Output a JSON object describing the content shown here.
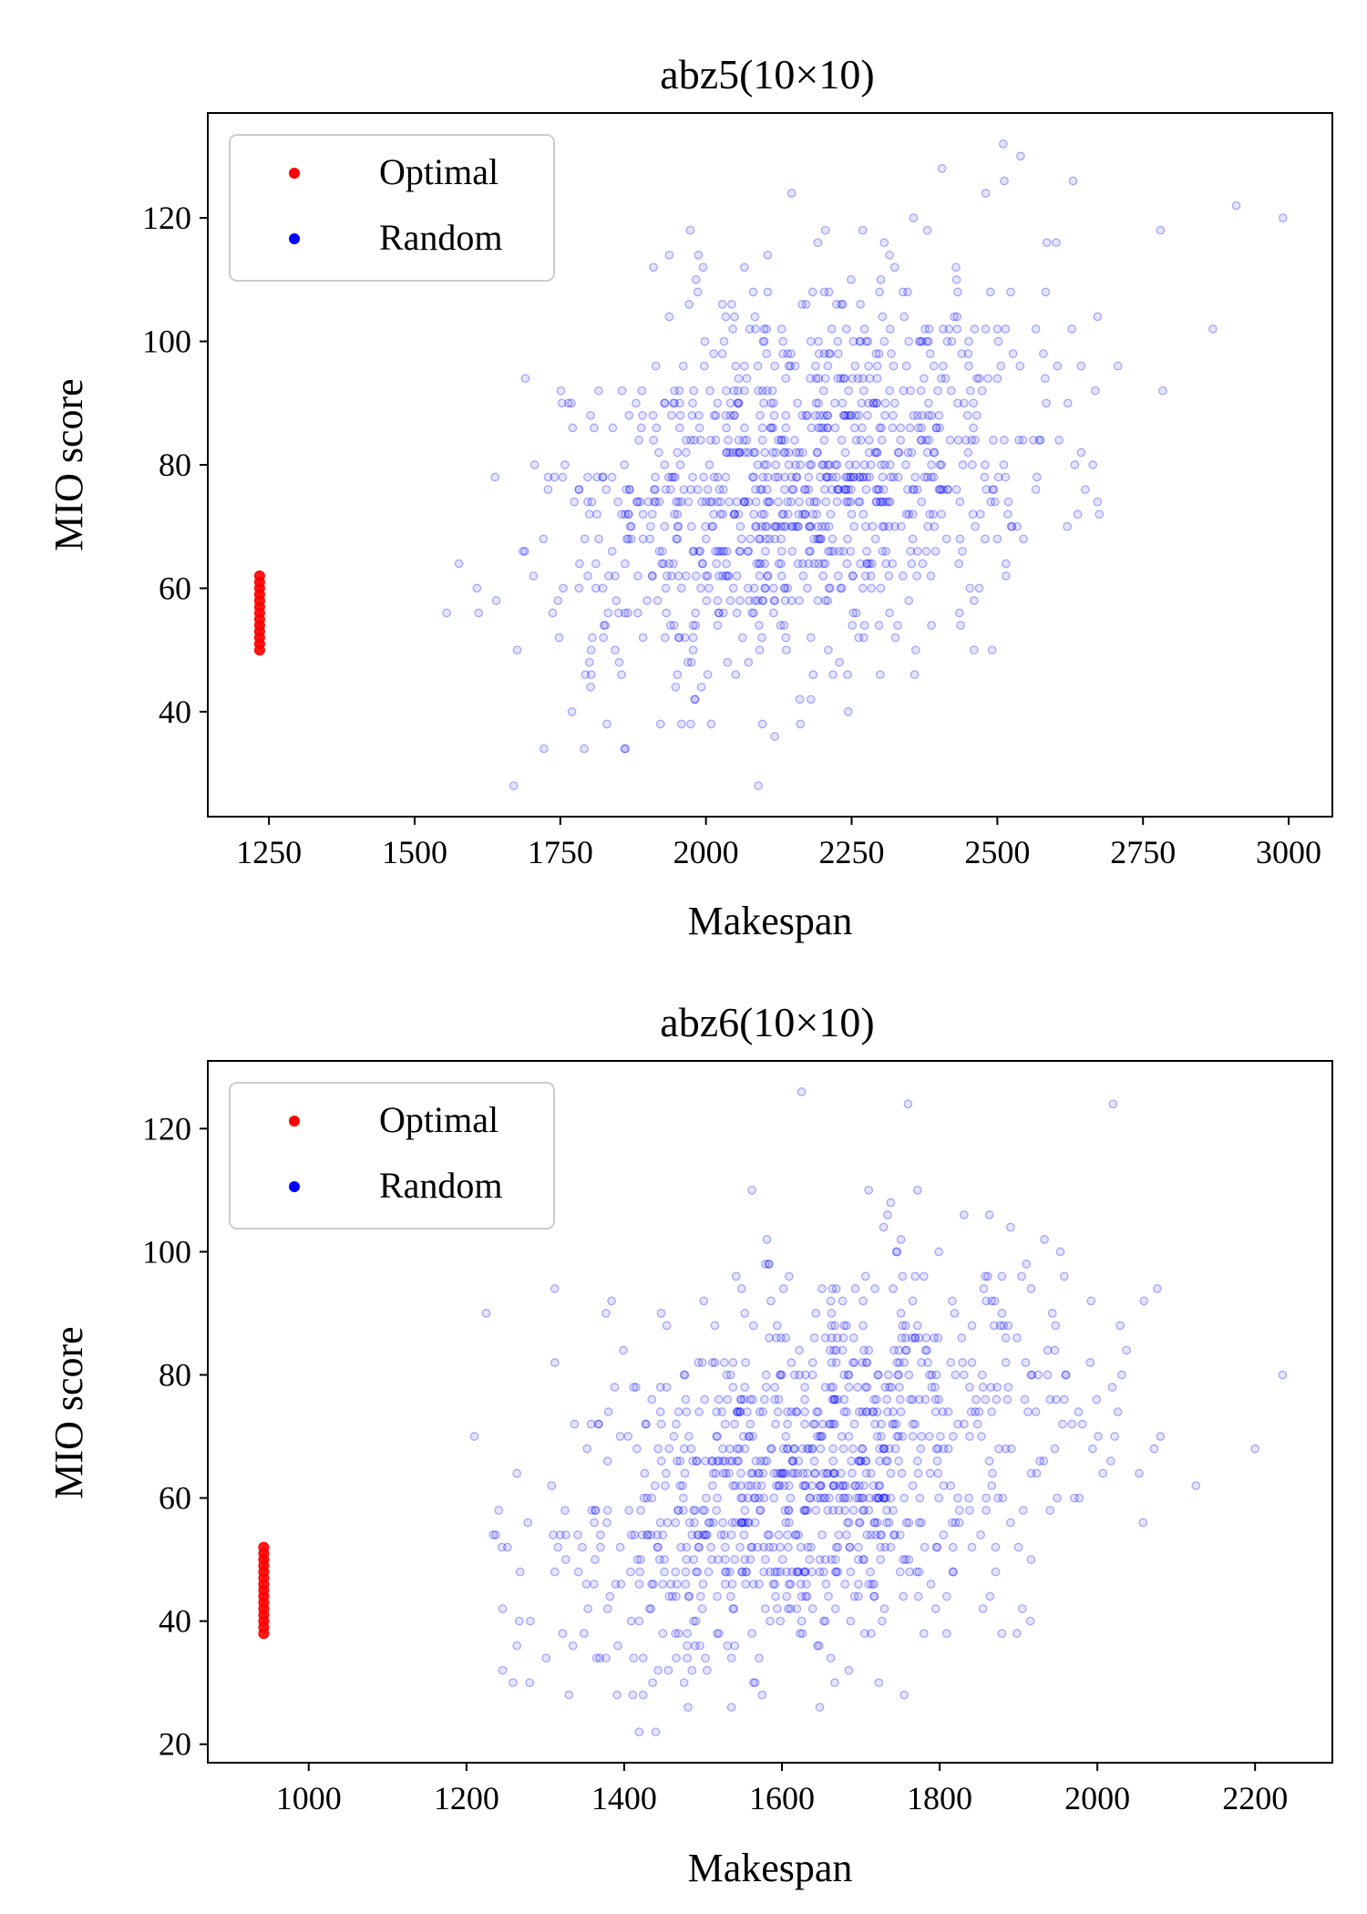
{
  "figure": {
    "background": "#ffffff",
    "optimal_color": "#ff0000",
    "random_color": "#0000ff"
  },
  "chart_data": [
    {
      "type": "scatter",
      "title": "abz5(10×10)",
      "xlabel": "Makespan",
      "ylabel": "MIO score",
      "xlim": [
        1145,
        3075
      ],
      "ylim": [
        23,
        137
      ],
      "xticks": [
        1250,
        1500,
        1750,
        2000,
        2250,
        2500,
        2750,
        3000
      ],
      "yticks": [
        40,
        60,
        80,
        100,
        120
      ],
      "grid": false,
      "legend": {
        "position": "top-left",
        "entries": [
          "Optimal",
          "Random"
        ]
      },
      "series": [
        {
          "name": "Optimal",
          "color": "#ff0000",
          "marker": "filled-circle",
          "x": [
            1234,
            1234,
            1234,
            1234,
            1234,
            1234,
            1234,
            1234,
            1234,
            1234,
            1234,
            1234,
            1234
          ],
          "y": [
            50,
            51,
            52,
            53,
            54,
            55,
            56,
            57,
            58,
            59,
            60,
            61,
            62
          ]
        },
        {
          "name": "Random",
          "color": "#0000ff",
          "marker": "hollow-circle",
          "opacity": 0.18,
          "distribution": {
            "count": 1000,
            "x_mean": 2150,
            "x_sd": 210,
            "y_mean": 78,
            "y_sd": 17,
            "correlation": 0.35,
            "x_min": 1555,
            "x_max": 2990,
            "y_min": 28,
            "y_max": 132,
            "x_step": 1,
            "y_step": 2
          },
          "x": [
            1555,
            1610,
            1640,
            1670,
            1770,
            1830,
            2180,
            2480,
            2510,
            2540,
            2780,
            2870,
            2990,
            2910,
            1910,
            2460
          ],
          "y": [
            56,
            56,
            58,
            28,
            40,
            38,
            42,
            124,
            132,
            130,
            118,
            102,
            120,
            122,
            112,
            58
          ]
        }
      ]
    },
    {
      "type": "scatter",
      "title": "abz6(10×10)",
      "xlabel": "Makespan",
      "ylabel": "MIO score",
      "xlim": [
        872,
        2298
      ],
      "ylim": [
        17,
        131
      ],
      "xticks": [
        1000,
        1200,
        1400,
        1600,
        1800,
        2000,
        2200
      ],
      "yticks": [
        20,
        40,
        60,
        80,
        100,
        120
      ],
      "grid": false,
      "legend": {
        "position": "top-left",
        "entries": [
          "Optimal",
          "Random"
        ]
      },
      "series": [
        {
          "name": "Optimal",
          "color": "#ff0000",
          "marker": "filled-circle",
          "x": [
            943,
            943,
            943,
            943,
            943,
            943,
            943,
            943,
            943,
            943,
            943,
            943,
            943,
            943,
            943
          ],
          "y": [
            38,
            39,
            40,
            41,
            42,
            43,
            44,
            45,
            46,
            47,
            48,
            49,
            50,
            51,
            52
          ]
        },
        {
          "name": "Random",
          "color": "#0000ff",
          "marker": "hollow-circle",
          "opacity": 0.18,
          "distribution": {
            "count": 1000,
            "x_mean": 1640,
            "x_sd": 165,
            "y_mean": 64,
            "y_sd": 17,
            "correlation": 0.4,
            "x_min": 1210,
            "x_max": 2235,
            "y_min": 22,
            "y_max": 126,
            "x_step": 1,
            "y_step": 2
          },
          "x": [
            1210,
            1225,
            1245,
            1440,
            1625,
            1760,
            2020,
            2235,
            2200,
            2125,
            1915,
            2080,
            1330
          ],
          "y": [
            70,
            90,
            52,
            22,
            126,
            124,
            124,
            80,
            68,
            62,
            40,
            70,
            28
          ]
        }
      ]
    }
  ]
}
